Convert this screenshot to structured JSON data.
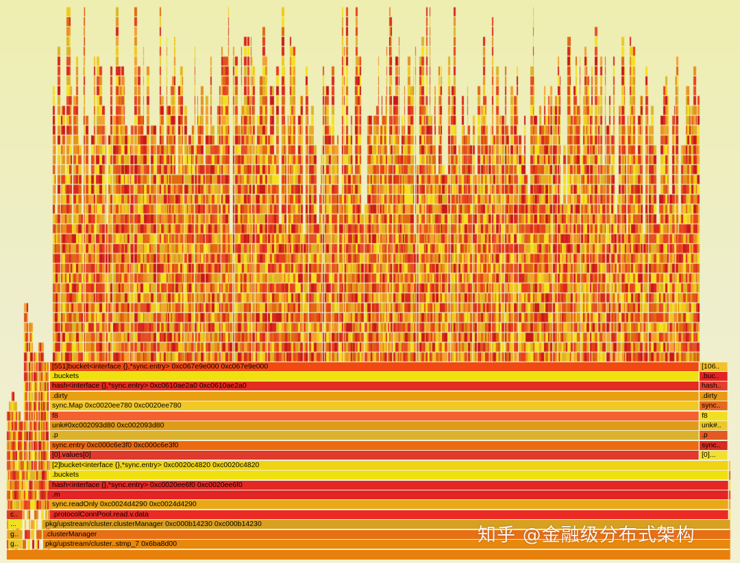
{
  "flamegraph": {
    "colors": [
      "#e8401a",
      "#f0c820",
      "#e06a10",
      "#d82820",
      "#f5e020",
      "#e89020",
      "#c81818",
      "#f5a030",
      "#e45028",
      "#dcb428"
    ],
    "main_frames": [
      {
        "label": "[551]bucket<interface {},*sync.entry> 0xc067e9e000 0xc067e9e000",
        "color": "#f04a12"
      },
      {
        "label": ".buckets",
        "color": "#f0e010"
      },
      {
        "label": "hash<interface {},*sync.entry> 0xc0610ae2a0 0xc0610ae2a0",
        "color": "#e42c20"
      },
      {
        "label": ".dirty",
        "color": "#e8a010"
      },
      {
        "label": "sync.Map 0xc0020ee780 0xc0020ee780",
        "color": "#f0c828"
      },
      {
        "label": "f8",
        "color": "#f46030"
      },
      {
        "label": "unk#0xc002093d80 0xc002093d80",
        "color": "#e09c18"
      },
      {
        "label": ".p",
        "color": "#dcb22c"
      },
      {
        "label": "sync.entry 0xc000c6e3f0 0xc000c6e3f0",
        "color": "#ec6a10"
      },
      {
        "label": "[0].values[0]",
        "color": "#e03a2c"
      }
    ],
    "side_frames": [
      {
        "label": "[106..",
        "color": "#f2c22c"
      },
      {
        "label": ".buc..",
        "color": "#e42424"
      },
      {
        "label": "hash..",
        "color": "#e24030"
      },
      {
        "label": ".dirty",
        "color": "#e89a18"
      },
      {
        "label": "sync..",
        "color": "#e46a20"
      },
      {
        "label": "f8",
        "color": "#f2e020"
      },
      {
        "label": "unk#..",
        "color": "#ecc828"
      },
      {
        "label": ".p",
        "color": "#e45a24"
      },
      {
        "label": "sync..",
        "color": "#d82c24"
      },
      {
        "label": "[0]...",
        "color": "#f0e030"
      }
    ],
    "wide_frames": [
      {
        "label": "[2]bucket<interface {},*sync.entry> 0xc0020c4820 0xc0020c4820",
        "color": "#f0d414"
      },
      {
        "label": ".buckets",
        "color": "#f0e010"
      },
      {
        "label": "hash<interface {},*sync.entry> 0xc0020ee6f0 0xc0020ee6f0",
        "color": "#e42824"
      },
      {
        "label": ".m",
        "color": "#e42424"
      },
      {
        "label": "sync.readOnly 0xc0024d4290 0xc0024d4290",
        "color": "#e8a818"
      },
      {
        "label": ".protocolConnPool.read.v.data",
        "color": "#ec2a24"
      }
    ],
    "base_frames": [
      {
        "label": "pkg/upstream/cluster.clusterManager 0xc000b14230 0xc000b14230",
        "color": "#d8a020"
      },
      {
        "label": ".clusterManager",
        "color": "#e87014"
      },
      {
        "label": "pkg/upstream/cluster..stmp_7 0x6ba8d00",
        "color": "#e8880c"
      }
    ],
    "left_frames": [
      {
        "label": "c..",
        "color": "#dc3c20"
      },
      {
        "label": "...",
        "color": "#f0e020"
      },
      {
        "label": "g..",
        "color": "#e6a81c"
      },
      {
        "label": "g..",
        "color": "#e8c82c"
      }
    ],
    "root_color": "#e8800c"
  },
  "watermark": "知乎 @金融级分布式架构"
}
